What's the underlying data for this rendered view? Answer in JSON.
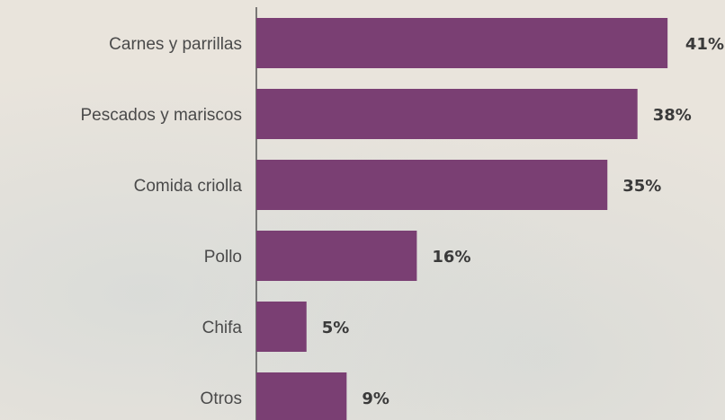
{
  "chart_data": {
    "type": "bar",
    "orientation": "horizontal",
    "categories": [
      "Carnes y parrillas",
      "Pescados y mariscos",
      "Comida criolla",
      "Pollo",
      "Chifa",
      "Otros"
    ],
    "values": [
      41,
      38,
      35,
      16,
      5,
      9
    ],
    "value_labels": [
      "41%",
      "38%",
      "35%",
      "16%",
      "5%",
      "9%"
    ],
    "unit": "%",
    "bar_color": "#7a3f73",
    "axis_color": "#555555",
    "grid": false,
    "legend": "none"
  }
}
